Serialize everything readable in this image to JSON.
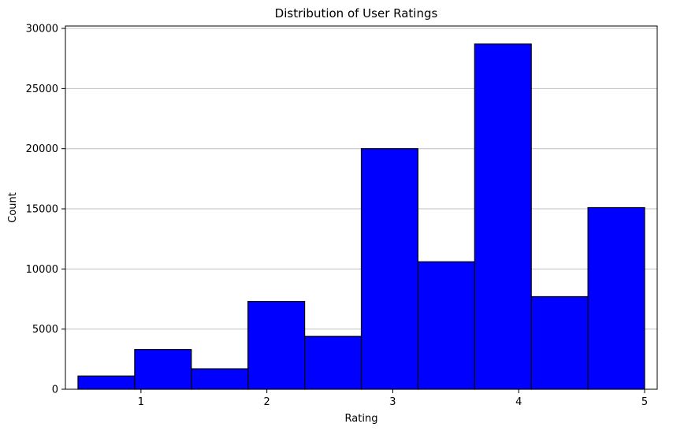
{
  "chart_data": {
    "type": "bar",
    "title": "Distribution of User Ratings",
    "xlabel": "Rating",
    "ylabel": "Count",
    "bin_edges": [
      0.5,
      0.95,
      1.4,
      1.85,
      2.3,
      2.75,
      3.2,
      3.65,
      4.1,
      4.55,
      5.0
    ],
    "values": [
      1100,
      3300,
      1700,
      7300,
      4400,
      20000,
      10600,
      28700,
      7700,
      15100
    ],
    "x_ticks": [
      1,
      2,
      3,
      4,
      5
    ],
    "x_tick_labels": [
      "1",
      "2",
      "3",
      "4",
      "5"
    ],
    "y_ticks": [
      0,
      5000,
      10000,
      15000,
      20000,
      25000,
      30000
    ],
    "y_tick_labels": [
      "0",
      "5000",
      "10000",
      "15000",
      "20000",
      "25000",
      "30000"
    ],
    "xlim": [
      0.4,
      5.1
    ],
    "ylim": [
      0,
      30200
    ],
    "grid": "y-axis",
    "bar_color": "#0000ff",
    "edge_color": "#000000",
    "grid_color": "#c0c0c0"
  }
}
